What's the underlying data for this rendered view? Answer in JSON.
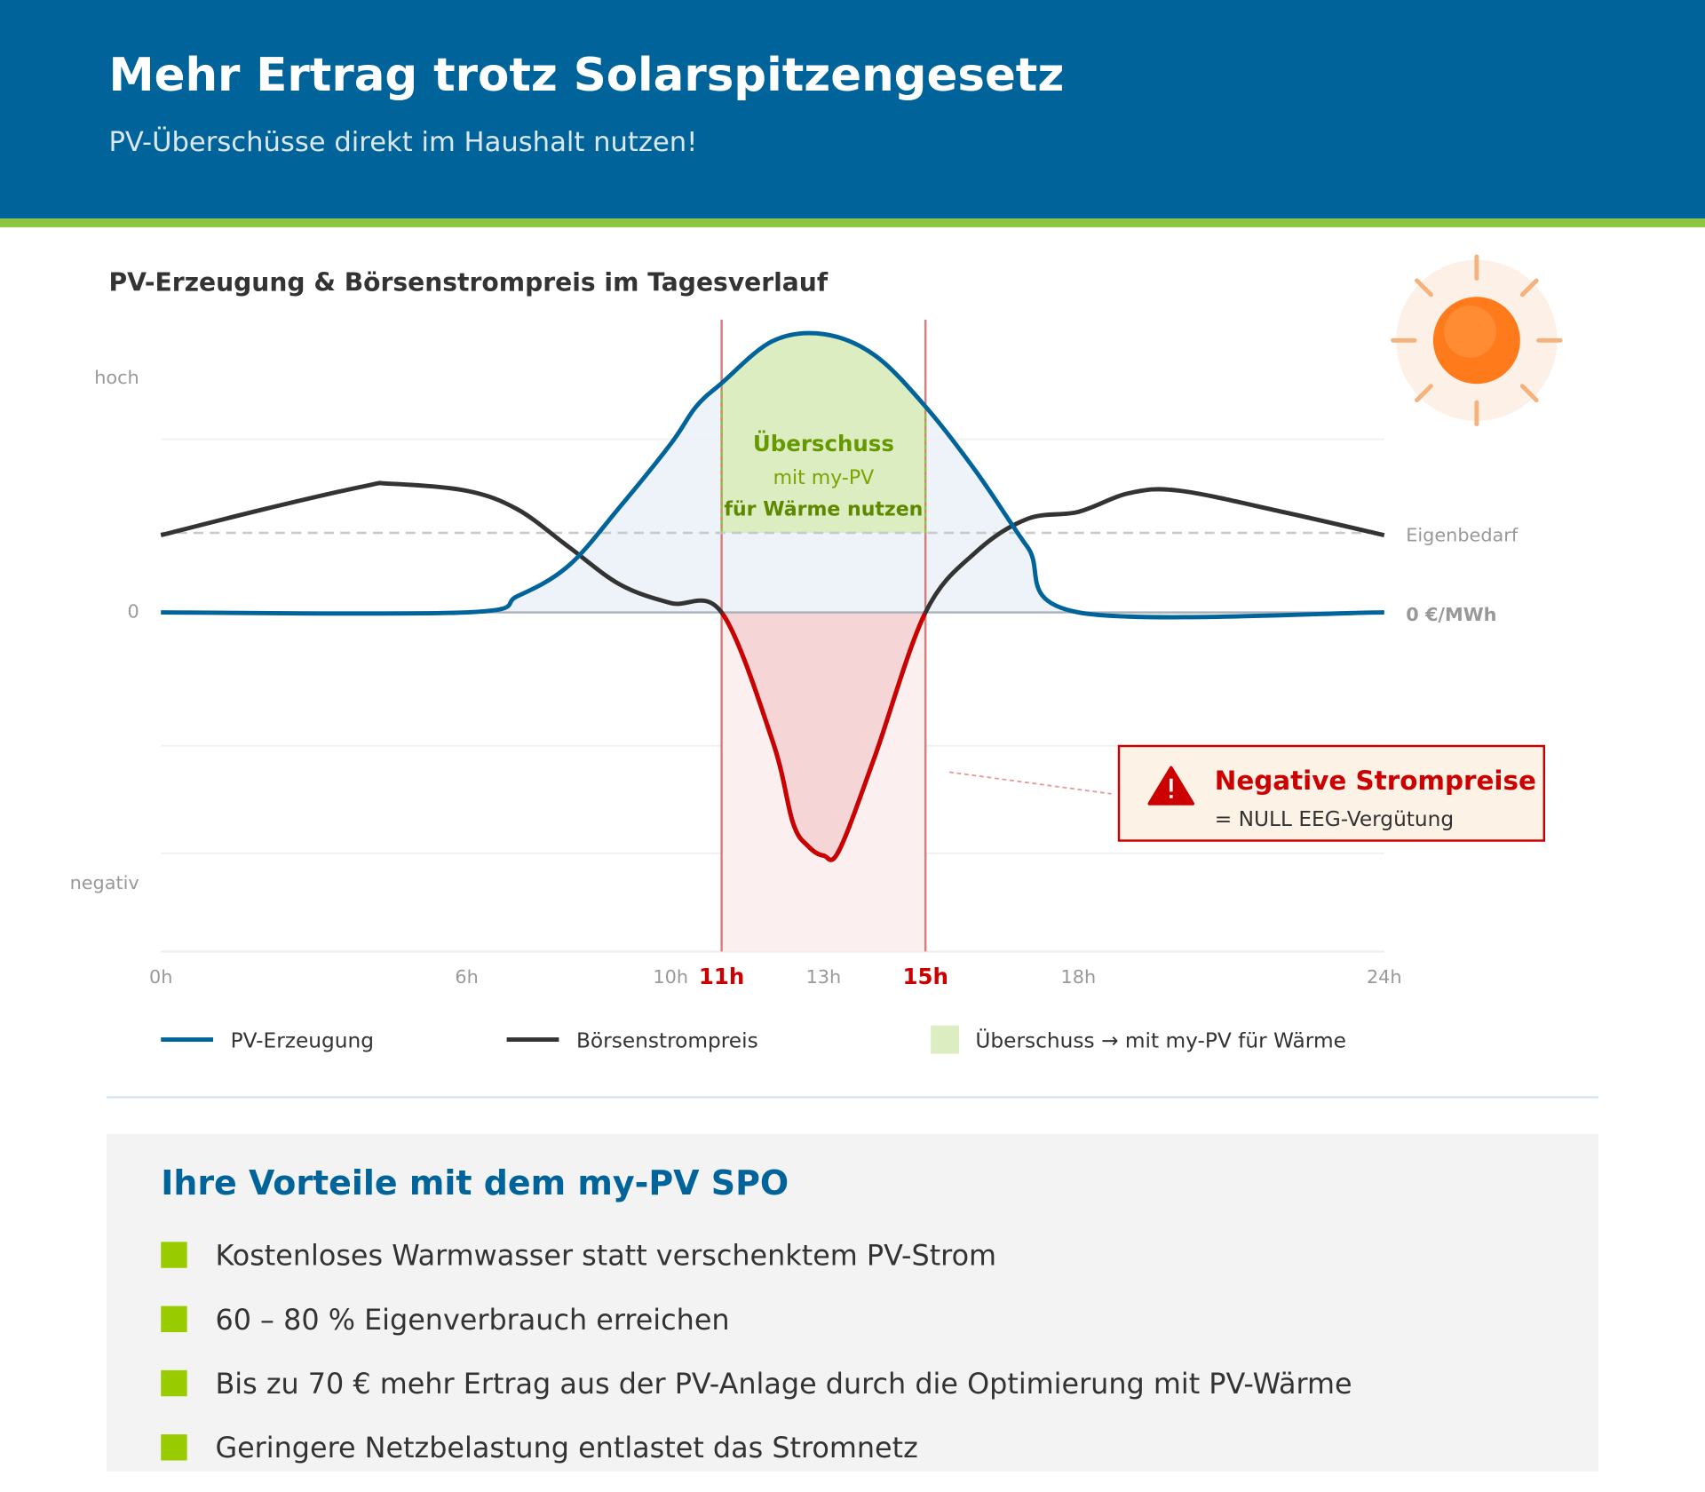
{
  "header": {
    "title": "Mehr Ertrag trotz Solarspitzengesetz",
    "subtitle": "PV-Überschüsse direkt im Haushalt nutzen!"
  },
  "chart_data": {
    "type": "line",
    "title": "PV-Erzeugung & Börsenstrompreis im Tagesverlauf",
    "xlim": [
      0,
      24
    ],
    "xticks": [
      {
        "value": 0,
        "label": "0h"
      },
      {
        "value": 6,
        "label": "6h"
      },
      {
        "value": 10,
        "label": "10h"
      },
      {
        "value": 11,
        "label": "11h"
      },
      {
        "value": 13,
        "label": "13h"
      },
      {
        "value": 15,
        "label": "15h"
      },
      {
        "value": 18,
        "label": "18h"
      },
      {
        "value": 24,
        "label": "24h"
      }
    ],
    "ylim": [
      -145,
      127
    ],
    "yticks": [
      {
        "value": 100,
        "label": "hoch"
      },
      0,
      {
        "value": -116,
        "label": "negativ"
      }
    ],
    "grid_y": [
      74,
      -57,
      -103
    ],
    "zero_label": "0 €/MWh",
    "reference_line": {
      "value": 34,
      "label": "Eigenbedarf"
    },
    "highlight": {
      "x": [
        11,
        15
      ],
      "lines": [
        "Überschuss",
        "mit my-PV",
        "für Wärme nutzen"
      ],
      "legend": "Überschuss → mit my-PV für Wärme",
      "color": "#dcedc1"
    },
    "series": [
      {
        "name": "PV-Erzeugung",
        "color": "#00649a",
        "x": [
          0,
          6,
          7,
          8,
          9,
          10,
          10.5,
          11,
          12,
          13,
          14,
          15,
          16,
          17,
          18,
          24
        ],
        "values": [
          0,
          0,
          7,
          20,
          45,
          72,
          88,
          98,
          116,
          119,
          110,
          88,
          60,
          28,
          0,
          0
        ]
      },
      {
        "name": "Börsenstrompreis",
        "color": "#333333",
        "x": [
          0,
          2,
          4,
          4.5,
          6,
          7,
          8,
          9,
          10,
          11,
          12,
          12.4,
          12.7,
          13,
          13.3,
          14,
          15,
          16,
          17,
          18,
          19,
          20,
          22,
          24
        ],
        "values": [
          33,
          44,
          54,
          55,
          52,
          44,
          28,
          12,
          4,
          0,
          -55,
          -90,
          -100,
          -104,
          -102,
          -62,
          0,
          26,
          40,
          43,
          51,
          52,
          43,
          33
        ]
      }
    ],
    "warning": {
      "title": "Negative Strompreise",
      "text": "= NULL EEG-Vergütung"
    }
  },
  "benefits": {
    "title": "Ihre Vorteile mit dem my-PV SPO",
    "items": [
      "Kostenloses Warmwasser statt verschenktem PV-Strom",
      "60 – 80 % Eigenverbrauch erreichen",
      "Bis zu 70 € mehr Ertrag aus der PV-Anlage durch die Optimierung mit PV-Wärme",
      "Geringere Netzbelastung entlastet das Stromnetz"
    ]
  }
}
